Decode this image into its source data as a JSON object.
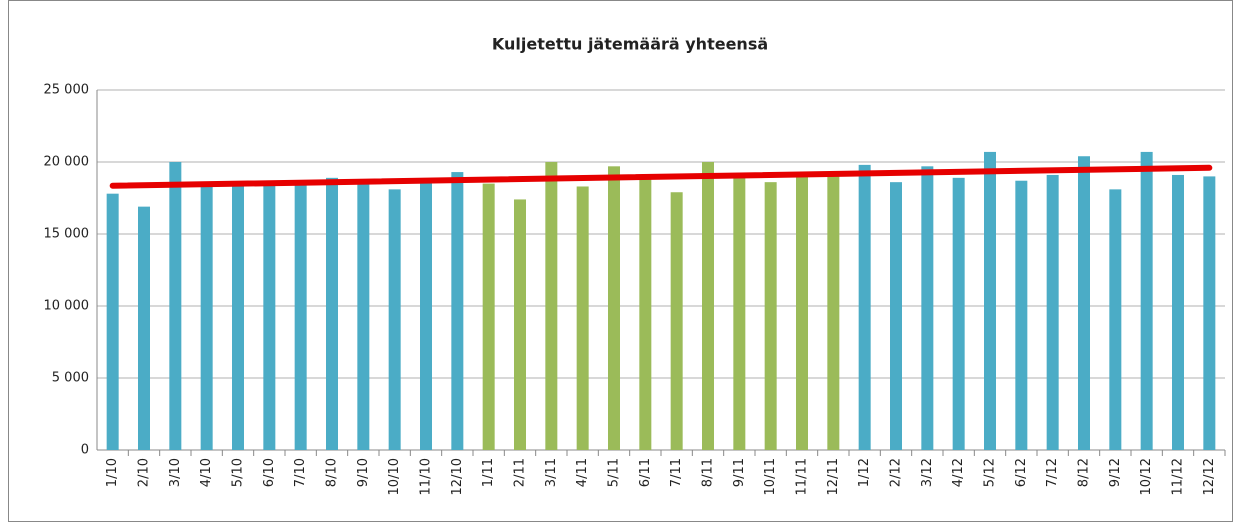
{
  "chart_data": {
    "type": "bar",
    "title": "Kuljetettu jätemäärä yhteensä",
    "categories": [
      "1/10",
      "2/10",
      "3/10",
      "4/10",
      "5/10",
      "6/10",
      "7/10",
      "8/10",
      "9/10",
      "10/10",
      "11/10",
      "12/10",
      "1/11",
      "2/11",
      "3/11",
      "4/11",
      "5/11",
      "6/11",
      "7/11",
      "8/11",
      "9/11",
      "10/11",
      "11/11",
      "12/11",
      "1/12",
      "2/12",
      "3/12",
      "4/12",
      "5/12",
      "6/12",
      "7/12",
      "8/12",
      "9/12",
      "10/12",
      "11/12",
      "12/12"
    ],
    "values": [
      17800,
      16900,
      20000,
      18300,
      18300,
      18400,
      18500,
      18900,
      18500,
      18100,
      18600,
      19300,
      18500,
      17400,
      20000,
      18300,
      19700,
      18900,
      17900,
      20000,
      19200,
      18600,
      19100,
      19000,
      19800,
      18600,
      19700,
      18900,
      20700,
      18700,
      19100,
      20400,
      18100,
      20700,
      19100,
      19000
    ],
    "colors": [
      "#4bacc6",
      "#4bacc6",
      "#4bacc6",
      "#4bacc6",
      "#4bacc6",
      "#4bacc6",
      "#4bacc6",
      "#4bacc6",
      "#4bacc6",
      "#4bacc6",
      "#4bacc6",
      "#4bacc6",
      "#9bbb59",
      "#9bbb59",
      "#9bbb59",
      "#9bbb59",
      "#9bbb59",
      "#9bbb59",
      "#9bbb59",
      "#9bbb59",
      "#9bbb59",
      "#9bbb59",
      "#9bbb59",
      "#9bbb59",
      "#4bacc6",
      "#4bacc6",
      "#4bacc6",
      "#4bacc6",
      "#4bacc6",
      "#4bacc6",
      "#4bacc6",
      "#4bacc6",
      "#4bacc6",
      "#4bacc6",
      "#4bacc6",
      "#4bacc6"
    ],
    "trendline": {
      "color": "#e60000",
      "values": [
        18350,
        19600
      ]
    },
    "ylim": [
      0,
      25000
    ],
    "yticks": [
      0,
      {
        "value": 5000,
        "label": "5 000"
      },
      {
        "value": 10000,
        "label": "10 000"
      },
      {
        "value": 15000,
        "label": "15 000"
      },
      {
        "value": 20000,
        "label": "20 000"
      },
      {
        "value": 25000,
        "label": "25 000"
      }
    ],
    "grid": true
  }
}
